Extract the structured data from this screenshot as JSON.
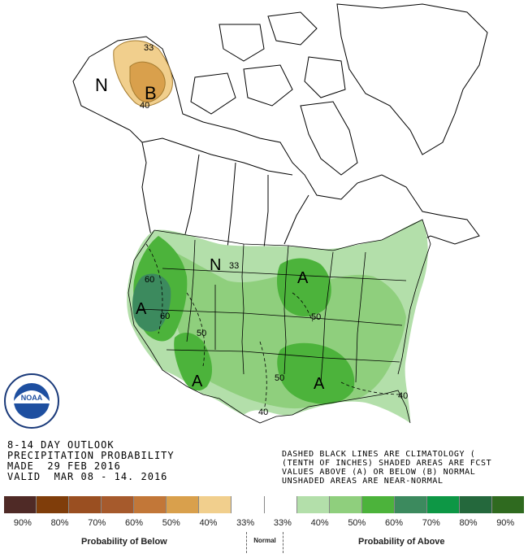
{
  "title_lines": [
    "8-14 DAY OUTLOOK",
    "PRECIPITATION PROBABILITY",
    "MADE  29 FEB 2016",
    "VALID  MAR 08 - 14. 2016"
  ],
  "note_lines": [
    "DASHED BLACK LINES ARE CLIMATOLOGY (",
    "(TENTH OF INCHES) SHADED AREAS ARE FCST",
    "VALUES ABOVE (A) OR BELOW (B) NORMAL",
    "UNSHADED AREAS ARE NEAR-NORMAL"
  ],
  "legend": {
    "colors": [
      "#4f2a26",
      "#7f3d0a",
      "#9a4f21",
      "#a65a2c",
      "#c27738",
      "#d9a04c",
      "#f1cf8d",
      "#ffffff",
      "#ffffff",
      "#b3dfaa",
      "#8fcf7d",
      "#4cb33b",
      "#3c8a5e",
      "#0d9745",
      "#24683c",
      "#2f6a1f"
    ],
    "labels": [
      "90%",
      "80%",
      "70%",
      "60%",
      "50%",
      "40%",
      "33%",
      "33%",
      "40%",
      "50%",
      "60%",
      "70%",
      "80%",
      "90%"
    ],
    "below_caption": "Probability of Below",
    "normal_caption": "Normal",
    "above_caption": "Probability of Above"
  },
  "map_labels": {
    "alaska_b": "B",
    "alaska_n": "N",
    "alaska_33": "33",
    "alaska_40": "40",
    "plains_n": "N",
    "plains_33": "33",
    "west_a": "A",
    "west_60a": "60",
    "west_60b": "60",
    "west_50": "50",
    "sw_a": "A",
    "mw_a": "A",
    "mw_50": "50",
    "se_a": "A",
    "se_50": "50",
    "tx_40": "40",
    "fl_40": "40"
  },
  "logo_text": "NOAA"
}
